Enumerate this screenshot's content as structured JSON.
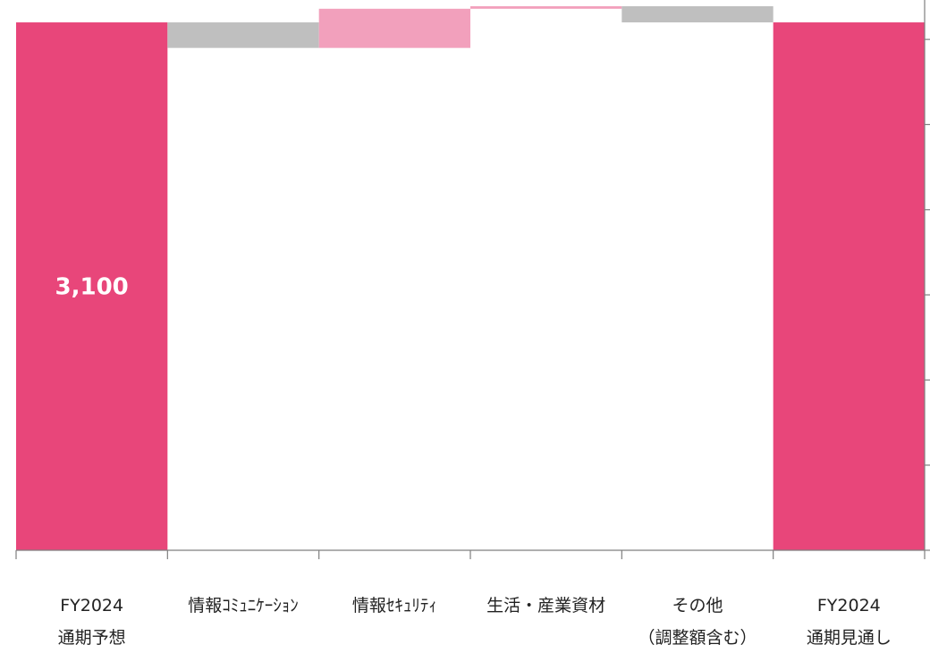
{
  "chart_data": {
    "type": "bar",
    "subtype": "waterfall",
    "categories": [
      [
        "FY2024",
        "通期予想"
      ],
      [
        "情報ｺﾐｭﾆｹｰｼｮﾝ"
      ],
      [
        "情報ｾｷｭﾘﾃｨ"
      ],
      [
        "生活・産業資材"
      ],
      [
        "その他",
        "（調整額含む）"
      ],
      [
        "FY2024",
        "通期見通し"
      ]
    ],
    "bars": [
      {
        "kind": "total",
        "base": 0,
        "value": 3100,
        "label": "3,100",
        "color": "#E8467A"
      },
      {
        "kind": "decrease",
        "base": 2950,
        "value": 150,
        "label": "",
        "color": "#BFBFBF"
      },
      {
        "kind": "increase",
        "base": 2950,
        "value": 230,
        "label": "",
        "color": "#F2A0BC"
      },
      {
        "kind": "increase",
        "base": 3180,
        "value": 15,
        "label": "",
        "color": "#F2A0BC"
      },
      {
        "kind": "decrease",
        "base": 3100,
        "value": 95,
        "label": "",
        "color": "#BFBFBF"
      },
      {
        "kind": "total",
        "base": 0,
        "value": 3100,
        "label": "",
        "color": "#E8467A"
      }
    ],
    "ylim": [
      0,
      3200
    ],
    "y_axis_position": "right",
    "y_tick_labels_shown": false,
    "grid": false
  },
  "colors": {
    "total": "#E8467A",
    "increase": "#F2A0BC",
    "decrease": "#BFBFBF",
    "axis": "#7F7F7F"
  }
}
